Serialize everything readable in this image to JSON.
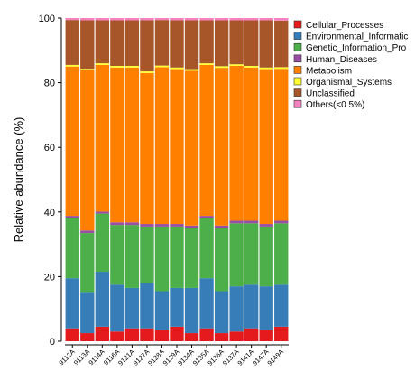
{
  "chart_data": {
    "type": "bar",
    "stacked": true,
    "xlabel": "",
    "ylabel": "Relative abundance (%)",
    "ylim": [
      0,
      100
    ],
    "yticks": [
      0,
      20,
      40,
      60,
      80,
      100
    ],
    "grid": false,
    "legend_position": "right",
    "categories": [
      "9112A",
      "9113A",
      "9114A",
      "9116A",
      "9121A",
      "9127A",
      "9128A",
      "9129A",
      "9134A",
      "9135A",
      "9136A",
      "9137A",
      "9141A",
      "9147A",
      "9149A"
    ],
    "series": [
      {
        "name": "Cellular_Processes",
        "color": "#e41a1c",
        "values": [
          4.0,
          2.5,
          4.5,
          3.0,
          4.0,
          4.0,
          3.5,
          4.5,
          2.5,
          4.0,
          2.5,
          3.0,
          4.0,
          3.5,
          4.5
        ]
      },
      {
        "name": "Environmental_Information_Processing",
        "color": "#377eb8",
        "values": [
          15.5,
          12.5,
          17.0,
          14.5,
          12.5,
          14.0,
          12.0,
          12.0,
          14.0,
          15.5,
          13.0,
          14.0,
          13.5,
          13.5,
          13.0
        ]
      },
      {
        "name": "Genetic_Information_Processing",
        "color": "#4daf4a",
        "values": [
          18.5,
          18.5,
          18.0,
          18.5,
          19.5,
          17.5,
          20.0,
          19.0,
          18.5,
          18.5,
          19.5,
          19.5,
          19.0,
          18.5,
          19.0
        ]
      },
      {
        "name": "Human_Diseases",
        "color": "#984ea3",
        "values": [
          0.8,
          0.8,
          0.6,
          0.8,
          0.8,
          0.8,
          0.8,
          0.8,
          0.8,
          0.8,
          0.8,
          0.8,
          0.8,
          0.8,
          0.8
        ]
      },
      {
        "name": "Metabolism",
        "color": "#ff7f00",
        "values": [
          46.2,
          49.5,
          45.4,
          47.9,
          47.9,
          46.7,
          48.5,
          47.9,
          47.9,
          46.7,
          48.8,
          47.9,
          47.4,
          47.9,
          47.0
        ]
      },
      {
        "name": "Organismal_Systems",
        "color": "#ffff33",
        "values": [
          0.5,
          0.5,
          0.5,
          0.5,
          0.5,
          0.5,
          0.5,
          0.5,
          0.5,
          0.5,
          0.5,
          0.5,
          0.5,
          0.5,
          0.5
        ]
      },
      {
        "name": "Unclassified",
        "color": "#a65628",
        "values": [
          13.9,
          15.0,
          13.3,
          14.1,
          14.1,
          15.8,
          14.1,
          14.6,
          15.1,
          13.3,
          14.2,
          13.6,
          14.1,
          14.6,
          14.4
        ]
      },
      {
        "name": "Others(<0.5%)",
        "color": "#f781bf",
        "values": [
          0.6,
          0.7,
          0.7,
          0.7,
          0.7,
          0.7,
          0.6,
          0.7,
          0.7,
          0.7,
          0.7,
          0.7,
          0.7,
          0.7,
          0.8
        ]
      }
    ],
    "legend_labels": [
      "Cellular_Processes",
      "Environmental_Informatic",
      "Genetic_Information_Pro",
      "Human_Diseases",
      "Metabolism",
      "Organismal_Systems",
      "Unclassified",
      "Others(<0.5%)"
    ]
  }
}
